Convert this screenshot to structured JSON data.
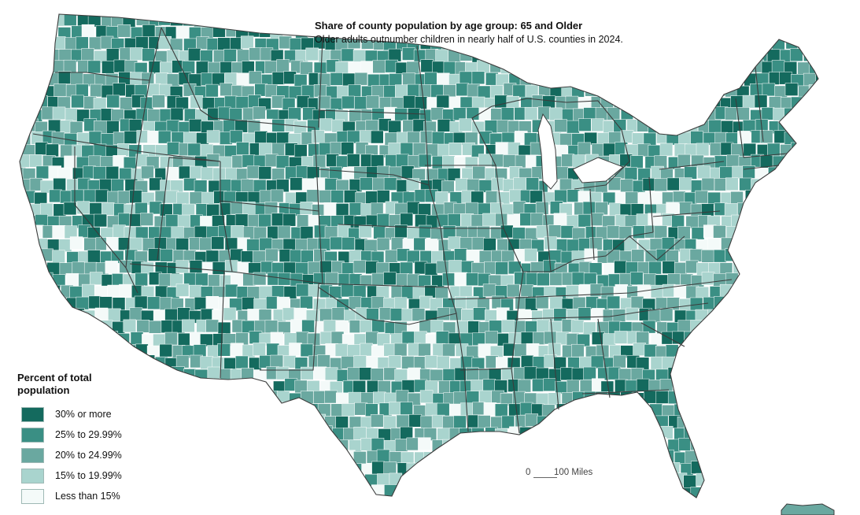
{
  "title": "Share of county population by age group: 65 and Older",
  "subtitle": "Older adults outnumber children in nearly half of U.S. counties in 2024.",
  "legend": {
    "title": "Percent of total population",
    "items": [
      {
        "label": "30% or more",
        "color": "#146a5e"
      },
      {
        "label": "25% to 29.99%",
        "color": "#3a8f84"
      },
      {
        "label": "20% to 24.99%",
        "color": "#6aa8a0"
      },
      {
        "label": "15% to 19.99%",
        "color": "#a9d4ce"
      },
      {
        "label": "Less than 15%",
        "color": "#f4faf9"
      }
    ]
  },
  "scale_bar": {
    "zero": "0",
    "label": "100 Miles"
  },
  "colors": {
    "border": "#3c3c3c",
    "county_line": "#ffffff"
  }
}
